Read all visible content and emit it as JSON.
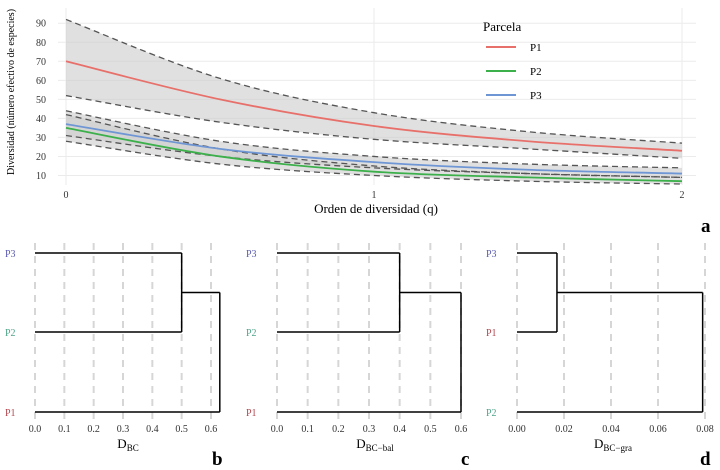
{
  "chart_data": [
    {
      "panel": "a",
      "type": "line",
      "xlabel": "Orden de diversidad (q)",
      "ylabel": "Diversidad (número efectivo de especies)",
      "x_ticks": [
        "0",
        "1",
        "2"
      ],
      "y_ticks": [
        "10",
        "20",
        "30",
        "40",
        "50",
        "60",
        "70",
        "80",
        "90"
      ],
      "xlim": [
        0,
        2
      ],
      "ylim": [
        5,
        98
      ],
      "legend_title": "Parcela",
      "legend_position": "top-right",
      "series": [
        {
          "name": "P1",
          "color": "#e8706b",
          "q": [
            0,
            0.5,
            1,
            1.5,
            2
          ],
          "mean": [
            70,
            50,
            36,
            28,
            23
          ],
          "lower": [
            52,
            38,
            29,
            24,
            19
          ],
          "upper": [
            92,
            61,
            43,
            33,
            27
          ]
        },
        {
          "name": "P2",
          "color": "#3cb04b",
          "q": [
            0,
            0.5,
            1,
            1.5,
            2
          ],
          "mean": [
            35,
            20,
            12,
            9,
            7
          ],
          "lower": [
            28,
            16,
            10,
            7,
            5.5
          ],
          "upper": [
            42,
            24,
            15,
            11,
            9
          ]
        },
        {
          "name": "P3",
          "color": "#6f96d4",
          "q": [
            0,
            0.5,
            1,
            1.5,
            2
          ],
          "mean": [
            37,
            24,
            17,
            13,
            11
          ],
          "lower": [
            31,
            20,
            14,
            11,
            9
          ],
          "upper": [
            44,
            28,
            20,
            16,
            14
          ]
        }
      ]
    },
    {
      "panel": "b",
      "type": "dendrogram",
      "xlabel_main": "D",
      "xlabel_sub": "BC",
      "x_ticks": [
        "0.0",
        "0.1",
        "0.2",
        "0.3",
        "0.4",
        "0.5",
        "0.6"
      ],
      "xlim": [
        0,
        0.6
      ],
      "leaves": [
        {
          "label": "P3",
          "color": "#5b5bb0"
        },
        {
          "label": "P2",
          "color": "#4fa38a"
        },
        {
          "label": "P1",
          "color": "#b0474f"
        }
      ],
      "merges": [
        {
          "leaves": [
            "P3",
            "P2"
          ],
          "height": 0.5
        },
        {
          "leaves": [
            "P3",
            "P2",
            "P1"
          ],
          "height": 0.63
        }
      ]
    },
    {
      "panel": "c",
      "type": "dendrogram",
      "xlabel_main": "D",
      "xlabel_sub": "BC−bal",
      "x_ticks": [
        "0.0",
        "0.1",
        "0.2",
        "0.3",
        "0.4",
        "0.5",
        "0.6"
      ],
      "xlim": [
        0,
        0.6
      ],
      "leaves": [
        {
          "label": "P3",
          "color": "#5b5bb0"
        },
        {
          "label": "P2",
          "color": "#4fa38a"
        },
        {
          "label": "P1",
          "color": "#b0474f"
        }
      ],
      "merges": [
        {
          "leaves": [
            "P3",
            "P2"
          ],
          "height": 0.4
        },
        {
          "leaves": [
            "P3",
            "P2",
            "P1"
          ],
          "height": 0.6
        }
      ]
    },
    {
      "panel": "d",
      "type": "dendrogram",
      "xlabel_main": "D",
      "xlabel_sub": "BC−gra",
      "x_ticks": [
        "0.00",
        "0.02",
        "0.04",
        "0.06",
        "0.08"
      ],
      "xlim": [
        0,
        0.08
      ],
      "leaves": [
        {
          "label": "P3",
          "color": "#5b5bb0"
        },
        {
          "label": "P1",
          "color": "#b0474f"
        },
        {
          "label": "P2",
          "color": "#4fa38a"
        }
      ],
      "merges": [
        {
          "leaves": [
            "P3",
            "P1"
          ],
          "height": 0.017
        },
        {
          "leaves": [
            "P3",
            "P1",
            "P2"
          ],
          "height": 0.079
        }
      ]
    }
  ]
}
